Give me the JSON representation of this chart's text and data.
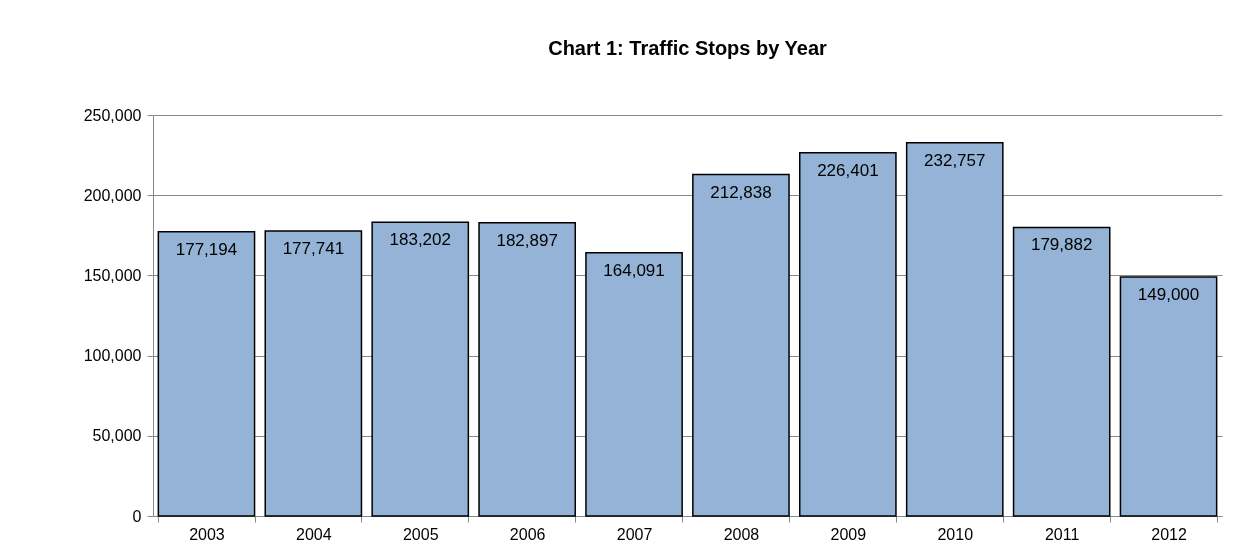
{
  "chart_data": {
    "type": "bar",
    "title": "Chart 1: Traffic Stops by Year",
    "categories": [
      "2003",
      "2004",
      "2005",
      "2006",
      "2007",
      "2008",
      "2009",
      "2010",
      "2011",
      "2012"
    ],
    "values": [
      177194,
      177741,
      183202,
      182897,
      164091,
      212838,
      226401,
      232757,
      179882,
      149000
    ],
    "value_labels": [
      "177,194",
      "177,741",
      "183,202",
      "182,897",
      "164,091",
      "212,838",
      "226,401",
      "232,757",
      "179,882",
      "149,000"
    ],
    "color": "#95b3d7",
    "ylim": [
      0,
      250000
    ],
    "yticks": [
      0,
      {
        "value": 50000,
        "label": "50,000"
      },
      {
        "value": 100000,
        "label": "100,000"
      },
      {
        "value": 150000,
        "label": "150,000"
      },
      {
        "value": 200000,
        "label": "200,000"
      },
      {
        "value": 250000,
        "label": "250,000"
      }
    ],
    "grid": true
  }
}
